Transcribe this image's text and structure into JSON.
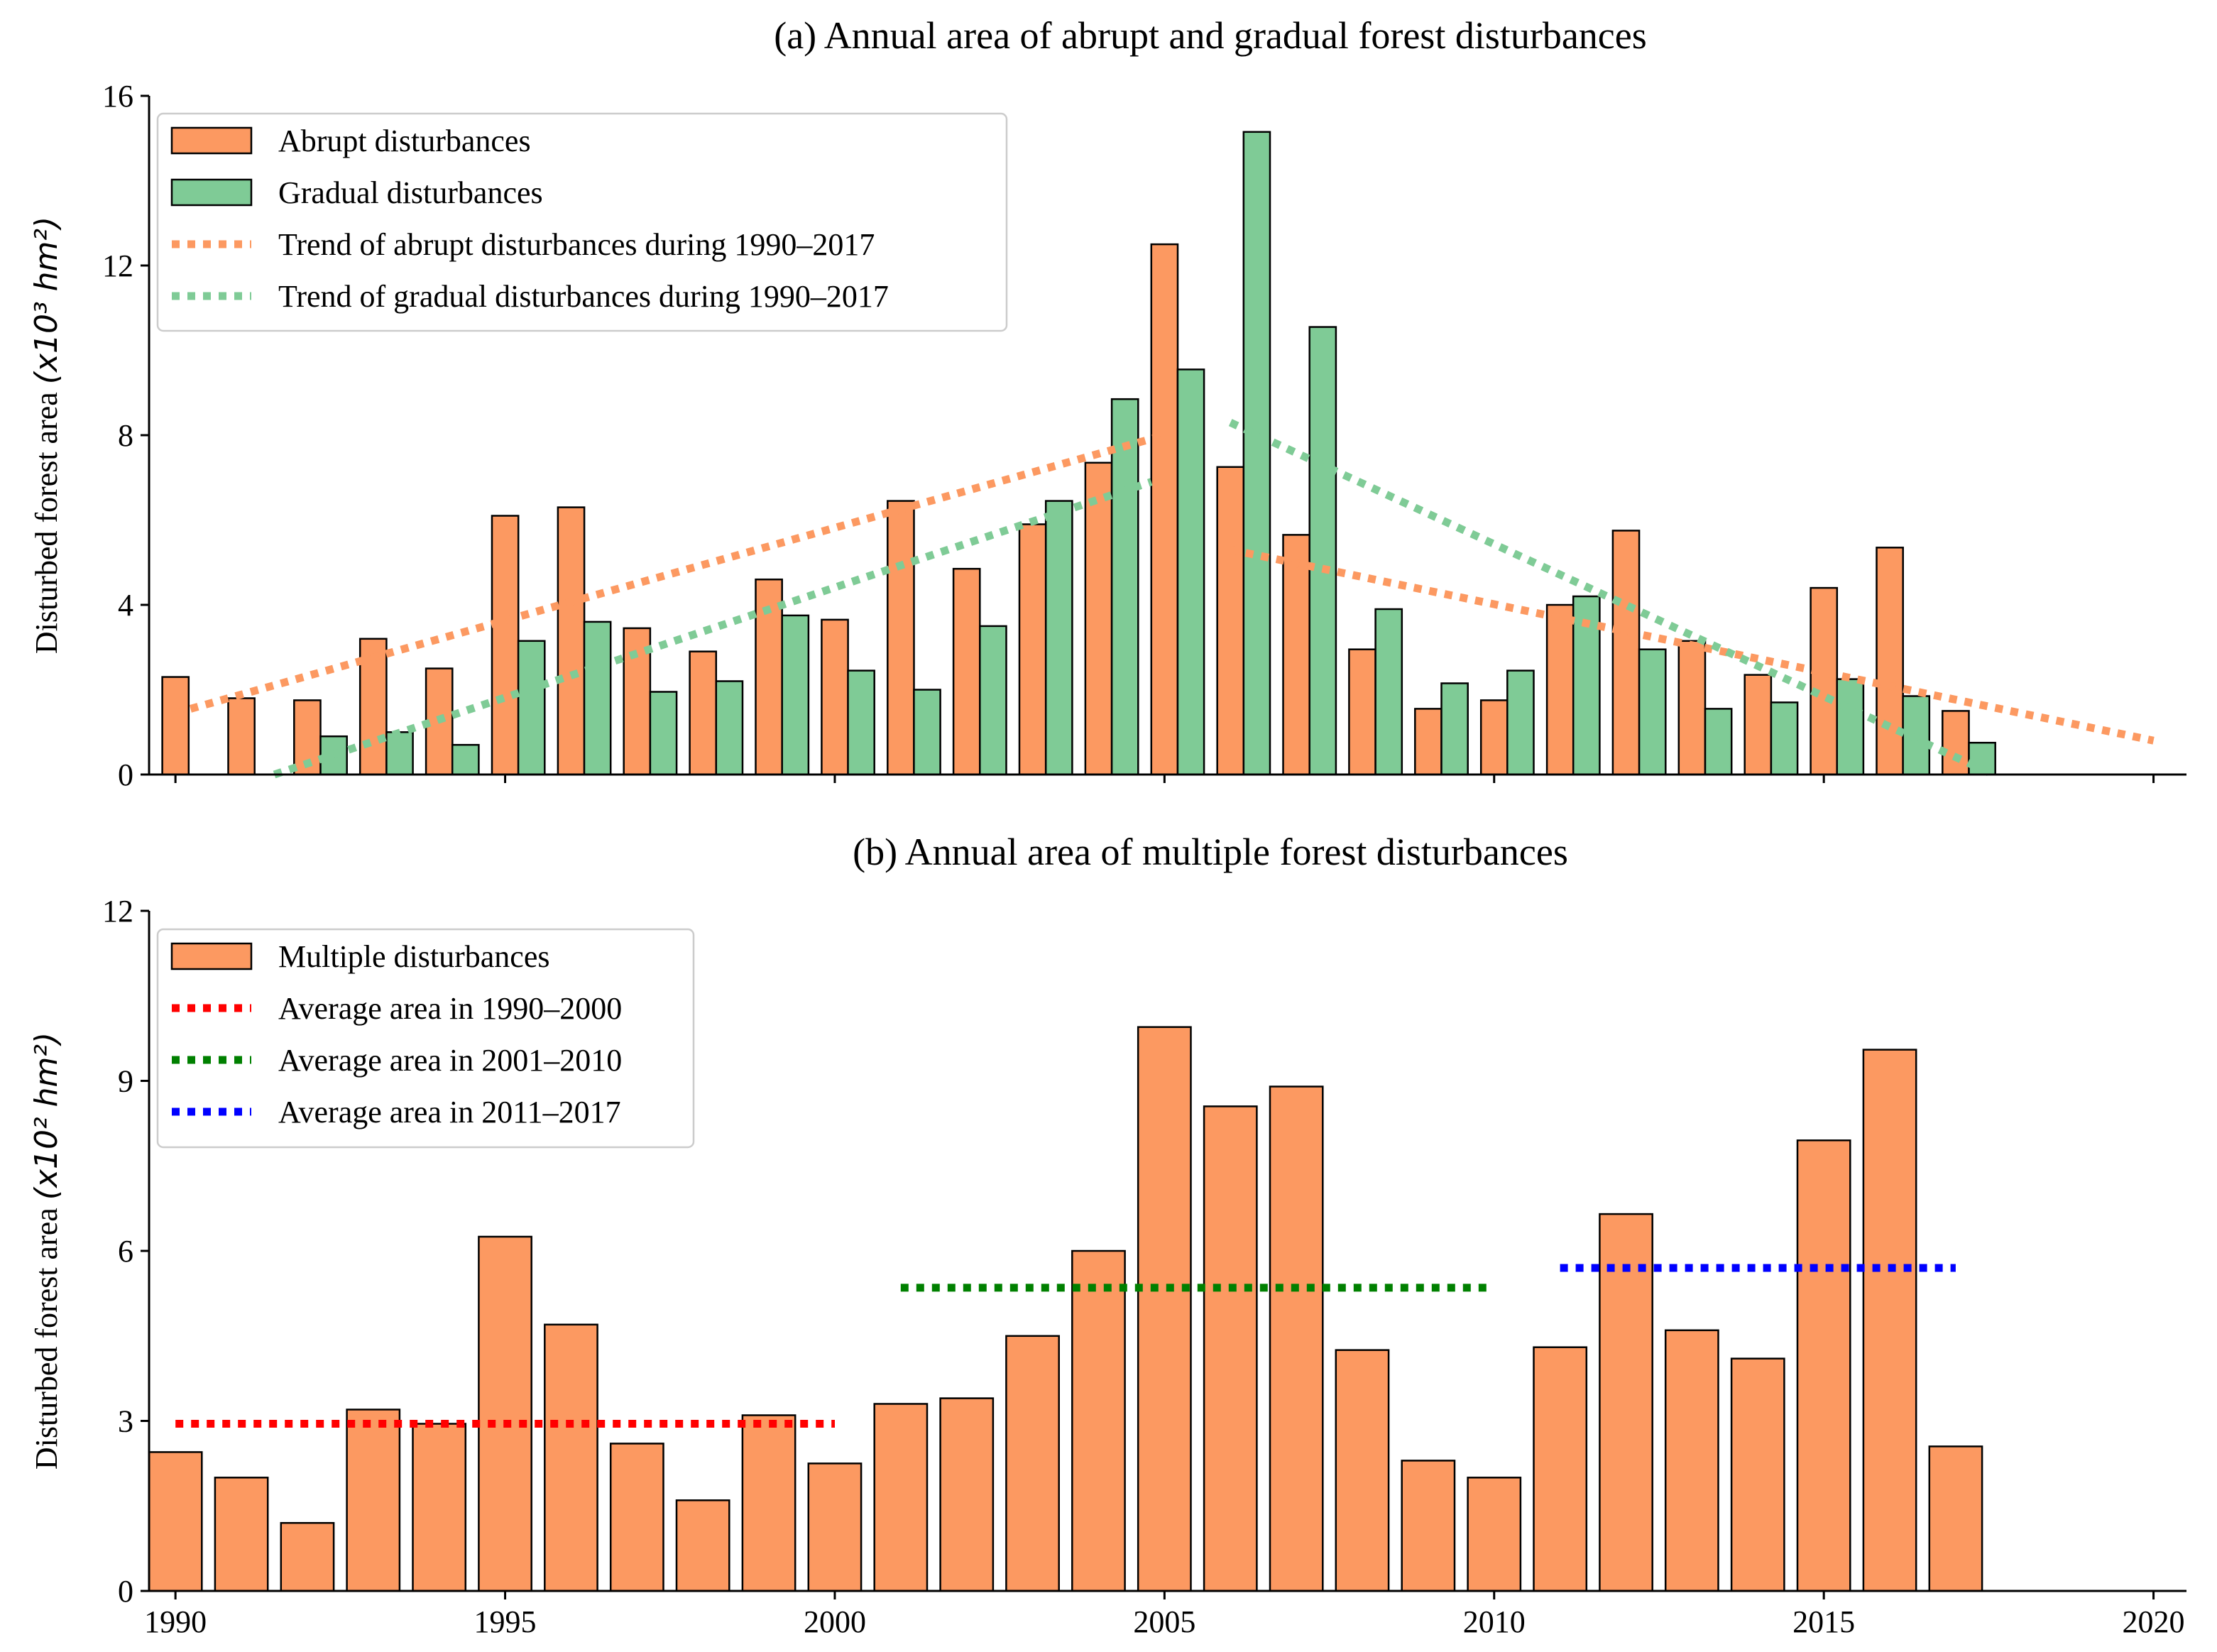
{
  "chart_data": [
    {
      "type": "bar",
      "title": "(a) Annual area of abrupt and gradual forest disturbances",
      "ylabel_text": "Disturbed forest area ",
      "ylabel_unit": "(x10³ hm²)",
      "xlim": [
        1989.6,
        2020.5
      ],
      "ylim": [
        0,
        16
      ],
      "yticks": [
        "0",
        "4",
        "8",
        "12",
        "16"
      ],
      "xticks": [
        "1990",
        "1995",
        "2000",
        "2005",
        "2010",
        "2015",
        "2020"
      ],
      "legend_position": "top-left",
      "x": [
        1990,
        1991,
        1992,
        1993,
        1994,
        1995,
        1996,
        1997,
        1998,
        1999,
        2000,
        2001,
        2002,
        2003,
        2004,
        2005,
        2006,
        2007,
        2008,
        2009,
        2010,
        2011,
        2012,
        2013,
        2014,
        2015,
        2016,
        2017,
        2018,
        2019,
        2020
      ],
      "series": [
        {
          "name": "Abrupt disturbances",
          "color": "#FC9961",
          "values": [
            2.3,
            1.8,
            1.75,
            3.2,
            2.5,
            6.1,
            6.3,
            3.45,
            2.9,
            4.6,
            3.65,
            6.45,
            4.85,
            5.9,
            7.35,
            12.5,
            7.25,
            5.65,
            2.95,
            1.55,
            1.75,
            4.0,
            5.75,
            3.15,
            2.35,
            4.4,
            5.35,
            1.5,
            0,
            0,
            0
          ]
        },
        {
          "name": "Gradual disturbances",
          "color": "#7FCB96",
          "values": [
            0,
            0,
            0.9,
            1.0,
            0.7,
            3.15,
            3.6,
            1.95,
            2.2,
            3.75,
            2.45,
            2.0,
            3.5,
            6.45,
            8.85,
            9.55,
            15.15,
            10.55,
            3.9,
            2.15,
            2.45,
            4.2,
            2.95,
            1.55,
            1.7,
            2.25,
            1.85,
            0.75,
            0,
            0,
            0
          ]
        }
      ],
      "trend_lines": [
        {
          "name": "Trend of abrupt disturbances during 1990–2017",
          "color": "#FC9961",
          "segments": [
            [
              [
                1990,
                1.45
              ],
              [
                2005,
                8.0
              ]
            ],
            [
              [
                2006,
                5.3
              ],
              [
                2020,
                0.8
              ]
            ]
          ]
        },
        {
          "name": "Trend of gradual disturbances during 1990–2017",
          "color": "#7FCB96",
          "segments": [
            [
              [
                1991.5,
                0.0
              ],
              [
                2004.8,
                6.9
              ]
            ],
            [
              [
                2006,
                8.3
              ],
              [
                2017.5,
                0.05
              ]
            ]
          ]
        }
      ]
    },
    {
      "type": "bar",
      "title": "(b) Annual area of multiple forest disturbances",
      "ylabel_text": "Disturbed forest area ",
      "ylabel_unit": "(x10² hm²)",
      "xlim": [
        1989.6,
        2020.5
      ],
      "ylim": [
        0,
        12
      ],
      "yticks": [
        "0",
        "3",
        "6",
        "9",
        "12"
      ],
      "xticks": [
        "1990",
        "1995",
        "2000",
        "2005",
        "2010",
        "2015",
        "2020"
      ],
      "legend_position": "top-left",
      "x": [
        1990,
        1991,
        1992,
        1993,
        1994,
        1995,
        1996,
        1997,
        1998,
        1999,
        2000,
        2001,
        2002,
        2003,
        2004,
        2005,
        2006,
        2007,
        2008,
        2009,
        2010,
        2011,
        2012,
        2013,
        2014,
        2015,
        2016,
        2017,
        2018,
        2019,
        2020
      ],
      "series": [
        {
          "name": "Multiple disturbances",
          "color": "#FC9961",
          "values": [
            2.45,
            2.0,
            1.2,
            3.2,
            2.95,
            6.25,
            4.7,
            2.6,
            1.6,
            3.1,
            2.25,
            3.3,
            3.4,
            4.5,
            6.0,
            9.95,
            8.55,
            8.9,
            4.25,
            2.3,
            2.0,
            4.3,
            6.65,
            4.6,
            4.1,
            7.95,
            9.55,
            2.55,
            0,
            0,
            0
          ]
        }
      ],
      "average_lines": [
        {
          "name": "Average area in 1990–2000",
          "color": "#FF0000",
          "x_range": [
            1990,
            2000
          ],
          "value": 2.95
        },
        {
          "name": "Average area in 2001–2010",
          "color": "#008000",
          "x_range": [
            2001,
            2010
          ],
          "value": 5.35
        },
        {
          "name": "Average area in 2011–2017",
          "color": "#0000FF",
          "x_range": [
            2011,
            2017
          ],
          "value": 5.7
        }
      ]
    }
  ]
}
